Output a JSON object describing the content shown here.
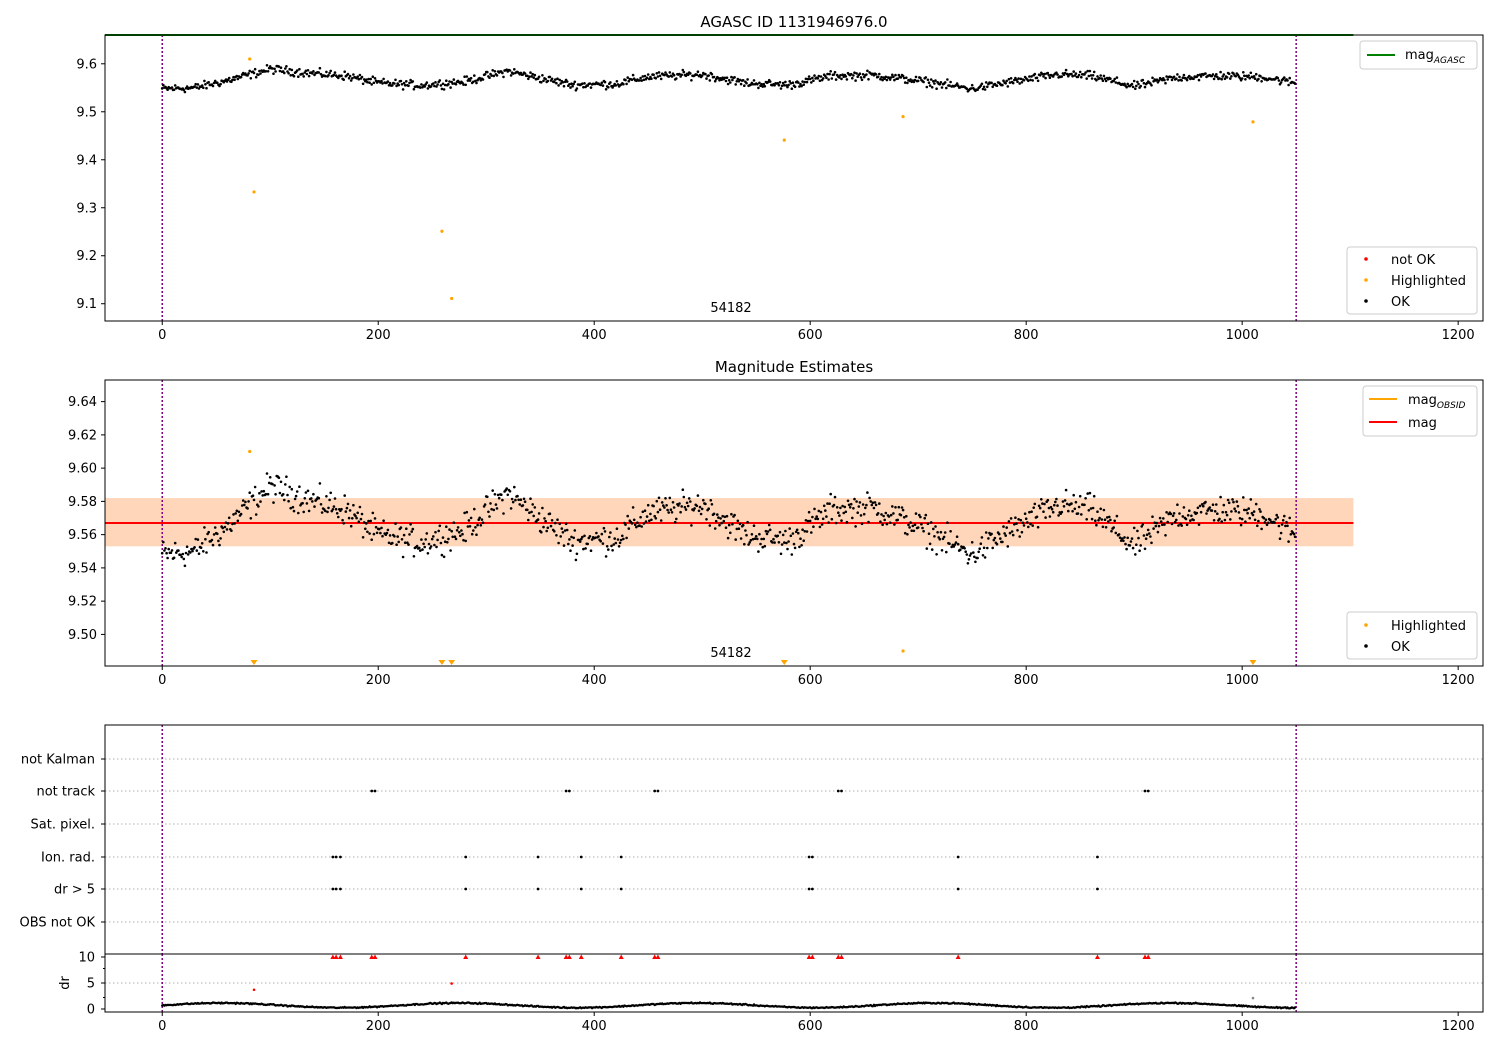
{
  "chart_data": [
    {
      "type": "scatter",
      "title": "AGASC ID 1131946976.0",
      "xlim": [
        -53,
        1223
      ],
      "ylim": [
        9.064,
        9.66
      ],
      "xticks": [
        0,
        200,
        400,
        600,
        800,
        1000,
        1200
      ],
      "yticks": [
        9.1,
        9.2,
        9.3,
        9.4,
        9.5,
        9.6
      ],
      "vlines": [
        0,
        1050
      ],
      "obsid_label": {
        "text": "54182",
        "x": 525
      },
      "mag_agasc": 9.66,
      "point_count": 1050,
      "legend_lines": [
        {
          "name": "mag_AGASC",
          "text": "mag",
          "sub": "AGASC",
          "color": "#008000"
        }
      ],
      "legend_points": [
        {
          "name": "not OK",
          "color": "#ff0000"
        },
        {
          "name": "Highlighted",
          "color": "#ffa500"
        },
        {
          "name": "OK",
          "color": "#000000"
        }
      ],
      "highlighted": [
        [
          81,
          9.61
        ],
        [
          85,
          9.333
        ],
        [
          259,
          9.251
        ],
        [
          268,
          9.111
        ],
        [
          576,
          9.441
        ],
        [
          686,
          9.49
        ],
        [
          1010,
          9.479
        ]
      ],
      "series_ok_profile": [
        [
          0,
          9.548
        ],
        [
          30,
          9.55
        ],
        [
          60,
          9.565
        ],
        [
          100,
          9.589
        ],
        [
          140,
          9.58
        ],
        [
          170,
          9.575
        ],
        [
          200,
          9.56
        ],
        [
          240,
          9.555
        ],
        [
          280,
          9.563
        ],
        [
          320,
          9.585
        ],
        [
          350,
          9.57
        ],
        [
          380,
          9.556
        ],
        [
          420,
          9.558
        ],
        [
          450,
          9.573
        ],
        [
          500,
          9.578
        ],
        [
          540,
          9.56
        ],
        [
          580,
          9.556
        ],
        [
          620,
          9.575
        ],
        [
          660,
          9.576
        ],
        [
          700,
          9.565
        ],
        [
          750,
          9.548
        ],
        [
          780,
          9.56
        ],
        [
          830,
          9.578
        ],
        [
          860,
          9.575
        ],
        [
          900,
          9.553
        ],
        [
          940,
          9.572
        ],
        [
          980,
          9.575
        ],
        [
          1020,
          9.572
        ],
        [
          1049,
          9.56
        ]
      ]
    },
    {
      "type": "scatter",
      "title": "Magnitude Estimates",
      "xlim": [
        -53,
        1223
      ],
      "ylim": [
        9.481,
        9.653
      ],
      "xticks": [
        0,
        200,
        400,
        600,
        800,
        1000,
        1200
      ],
      "yticks": [
        9.5,
        9.52,
        9.54,
        9.56,
        9.58,
        9.6,
        9.62,
        9.64
      ],
      "vlines": [
        0,
        1050
      ],
      "obsid_label": {
        "text": "54182",
        "x": 525
      },
      "mag": 9.567,
      "mag_band": [
        9.553,
        9.582
      ],
      "mag_obsid": 9.567,
      "legend_lines": [
        {
          "name": "mag_OBSID",
          "text": "mag",
          "sub": "OBSID",
          "color": "#ffa500"
        },
        {
          "name": "mag",
          "text": "mag",
          "sub": "",
          "color": "#ff0000"
        }
      ],
      "legend_points": [
        {
          "name": "Highlighted",
          "color": "#ffa500"
        },
        {
          "name": "OK",
          "color": "#000000"
        }
      ],
      "highlighted": [
        [
          81,
          9.61
        ],
        [
          686,
          9.49
        ]
      ],
      "highlighted_below_axis": [
        85,
        259,
        268,
        576,
        1010
      ]
    },
    {
      "type": "scatter",
      "title": "",
      "xlim": [
        -53,
        1223
      ],
      "xticks": [
        0,
        200,
        400,
        600,
        800,
        1000,
        1200
      ],
      "flag_rows": [
        "not Kalman",
        "not track",
        "Sat. pixel.",
        "Ion. rad.",
        "dr > 5",
        "OBS not OK"
      ],
      "flags": {
        "not track": [
          194,
          197,
          374,
          377,
          456,
          459,
          626,
          629,
          910,
          913
        ],
        "Ion. rad.": [
          158,
          161,
          165,
          281,
          348,
          388,
          425,
          599,
          602,
          737,
          866
        ],
        "dr > 5": [
          158,
          161,
          165,
          281,
          348,
          388,
          425,
          599,
          602,
          737,
          866
        ]
      }
    },
    {
      "type": "scatter",
      "title": "",
      "ylabel": "dr",
      "xlim": [
        -53,
        1223
      ],
      "ylim": [
        0,
        10
      ],
      "xticks": [
        0,
        200,
        400,
        600,
        800,
        1000,
        1200
      ],
      "yticks": [
        0,
        5,
        10
      ],
      "clipped_at_10": [
        158,
        161,
        165,
        194,
        197,
        281,
        348,
        374,
        377,
        388,
        425,
        456,
        459,
        599,
        602,
        626,
        629,
        737,
        866,
        910,
        913
      ],
      "outliers": [
        [
          85,
          3.7
        ],
        [
          268,
          4.9
        ],
        [
          1010,
          2.1
        ]
      ]
    }
  ]
}
